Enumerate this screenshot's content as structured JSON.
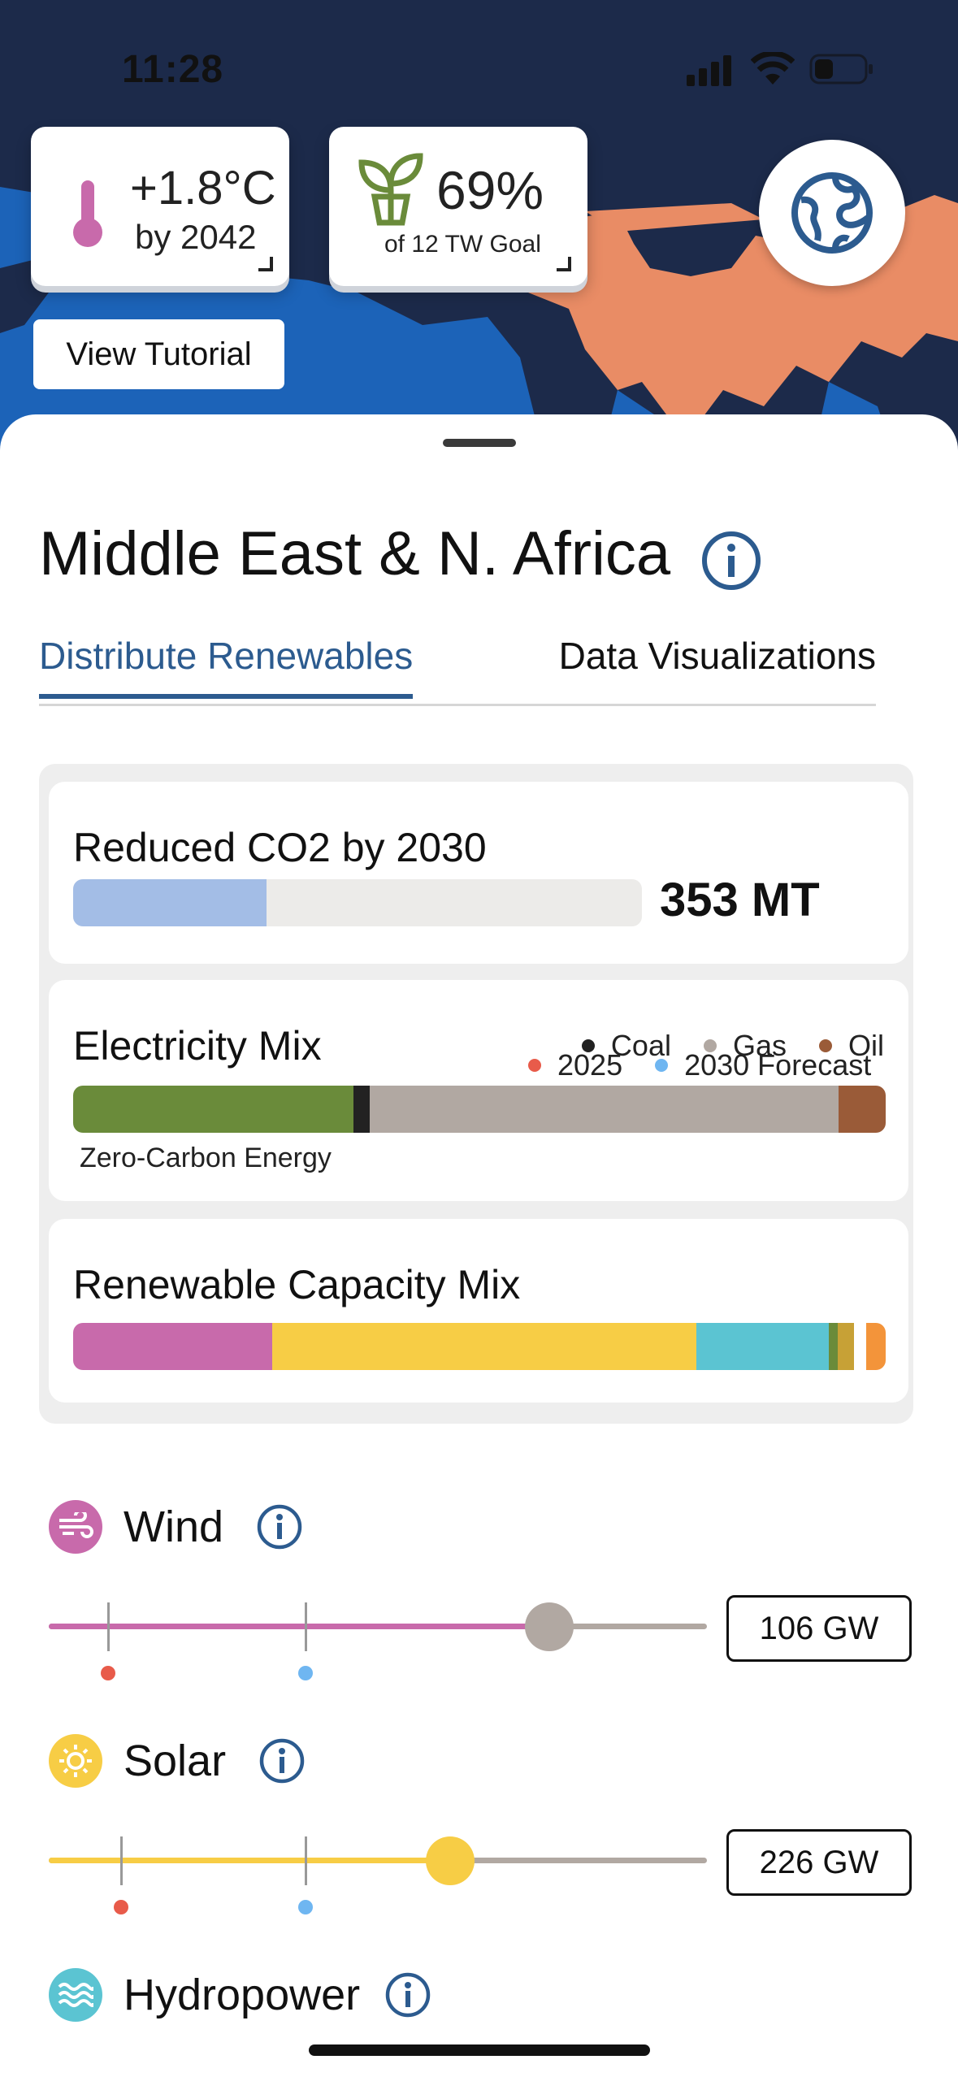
{
  "status_bar": {
    "time": "11:28"
  },
  "stats": {
    "temperature": {
      "value": "+1.8°C",
      "sub": "by 2042",
      "icon": "thermometer-icon"
    },
    "goal": {
      "value": "69%",
      "sub": "of 12 TW Goal",
      "icon": "sprout-icon"
    }
  },
  "tutorial_button": "View Tutorial",
  "region": {
    "title": "Middle East & N. Africa"
  },
  "tabs": [
    {
      "label": "Distribute Renewables",
      "active": true
    },
    {
      "label": "Data Visualizations",
      "active": false
    }
  ],
  "co2_card": {
    "title": "Reduced CO2 by 2030",
    "value": "353 MT",
    "fill_fraction": 0.34,
    "fill_color": "#a3bde6"
  },
  "electricity_card": {
    "title": "Electricity Mix",
    "legend": [
      {
        "label": "Coal",
        "color": "#222222"
      },
      {
        "label": "Gas",
        "color": "#b1a8a2"
      },
      {
        "label": "Oil",
        "color": "#9a5b38"
      }
    ],
    "segments": [
      {
        "name": "zero-carbon",
        "fraction": 0.345,
        "color": "#6a8b3a"
      },
      {
        "name": "coal",
        "fraction": 0.02,
        "color": "#222222"
      },
      {
        "name": "gas",
        "fraction": 0.577,
        "color": "#b1a8a2"
      },
      {
        "name": "oil",
        "fraction": 0.058,
        "color": "#9a5b38"
      }
    ],
    "zero_carbon_label": "Zero-Carbon Energy"
  },
  "capacity_card": {
    "title": "Renewable Capacity Mix",
    "segments": [
      {
        "name": "wind",
        "fraction": 0.245,
        "color": "#c86aab"
      },
      {
        "name": "solar",
        "fraction": 0.522,
        "color": "#f7cd45"
      },
      {
        "name": "hydropower",
        "fraction": 0.163,
        "color": "#5bc4d2"
      },
      {
        "name": "other-1",
        "fraction": 0.011,
        "color": "#6a8b3a"
      },
      {
        "name": "other-2",
        "fraction": 0.02,
        "color": "#c7a136"
      },
      {
        "name": "gap",
        "fraction": 0.015,
        "color": "#ffffff"
      },
      {
        "name": "other-3",
        "fraction": 0.024,
        "color": "#f3943a"
      }
    ]
  },
  "forecast_legend": [
    {
      "label": "2025",
      "color": "#e85b4a"
    },
    {
      "label": "2030 Forecast",
      "color": "#6fb6f1"
    }
  ],
  "energy_sources": [
    {
      "name": "Wind",
      "value": "106 GW",
      "level": 0.76,
      "tick_2025": 0.09,
      "tick_2030": 0.39,
      "color": "#c86aab",
      "knob_color": "#b1a8a2",
      "icon": "wind-icon"
    },
    {
      "name": "Solar",
      "value": "226 GW",
      "level": 0.61,
      "tick_2025": 0.11,
      "tick_2030": 0.39,
      "color": "#f7cd45",
      "knob_color": "#f7cd45",
      "icon": "sun-icon"
    },
    {
      "name": "Hydropower",
      "icon": "water-icon",
      "color": "#5bc4d2"
    }
  ]
}
